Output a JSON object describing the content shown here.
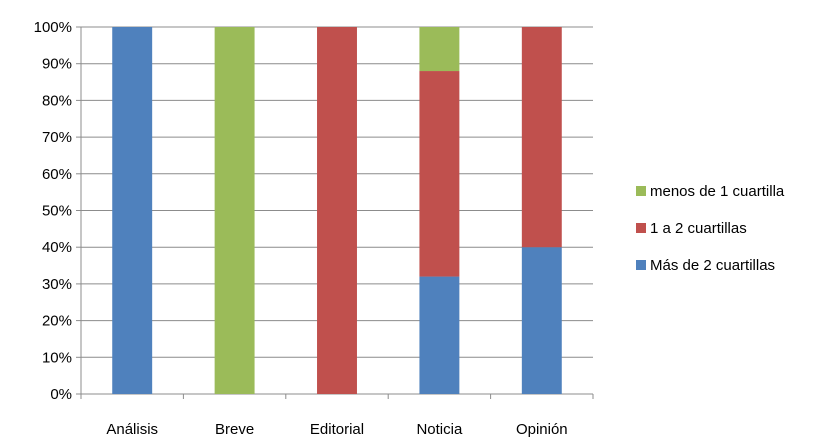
{
  "chart_data": {
    "type": "bar",
    "stacked": true,
    "categories": [
      "Análisis",
      "Breve",
      "Editorial",
      "Noticia",
      "Opinión"
    ],
    "series": [
      {
        "name": "Más de 2 cuartillas",
        "color": "#4F81BD",
        "values": [
          100,
          0,
          0,
          32,
          40
        ]
      },
      {
        "name": "1 a 2 cuartillas",
        "color": "#C0504D",
        "values": [
          0,
          0,
          100,
          56,
          60
        ]
      },
      {
        "name": "menos de 1 cuartilla",
        "color": "#9BBB59",
        "values": [
          0,
          100,
          0,
          12,
          0
        ]
      }
    ],
    "yticks": [
      "0%",
      "10%",
      "20%",
      "30%",
      "40%",
      "50%",
      "60%",
      "70%",
      "80%",
      "90%",
      "100%"
    ],
    "ylim": [
      0,
      100
    ],
    "grid": true,
    "legend_position": "right",
    "legend_order": [
      "menos de 1 cuartilla",
      "1 a 2 cuartillas",
      "Más de 2 cuartillas"
    ]
  }
}
